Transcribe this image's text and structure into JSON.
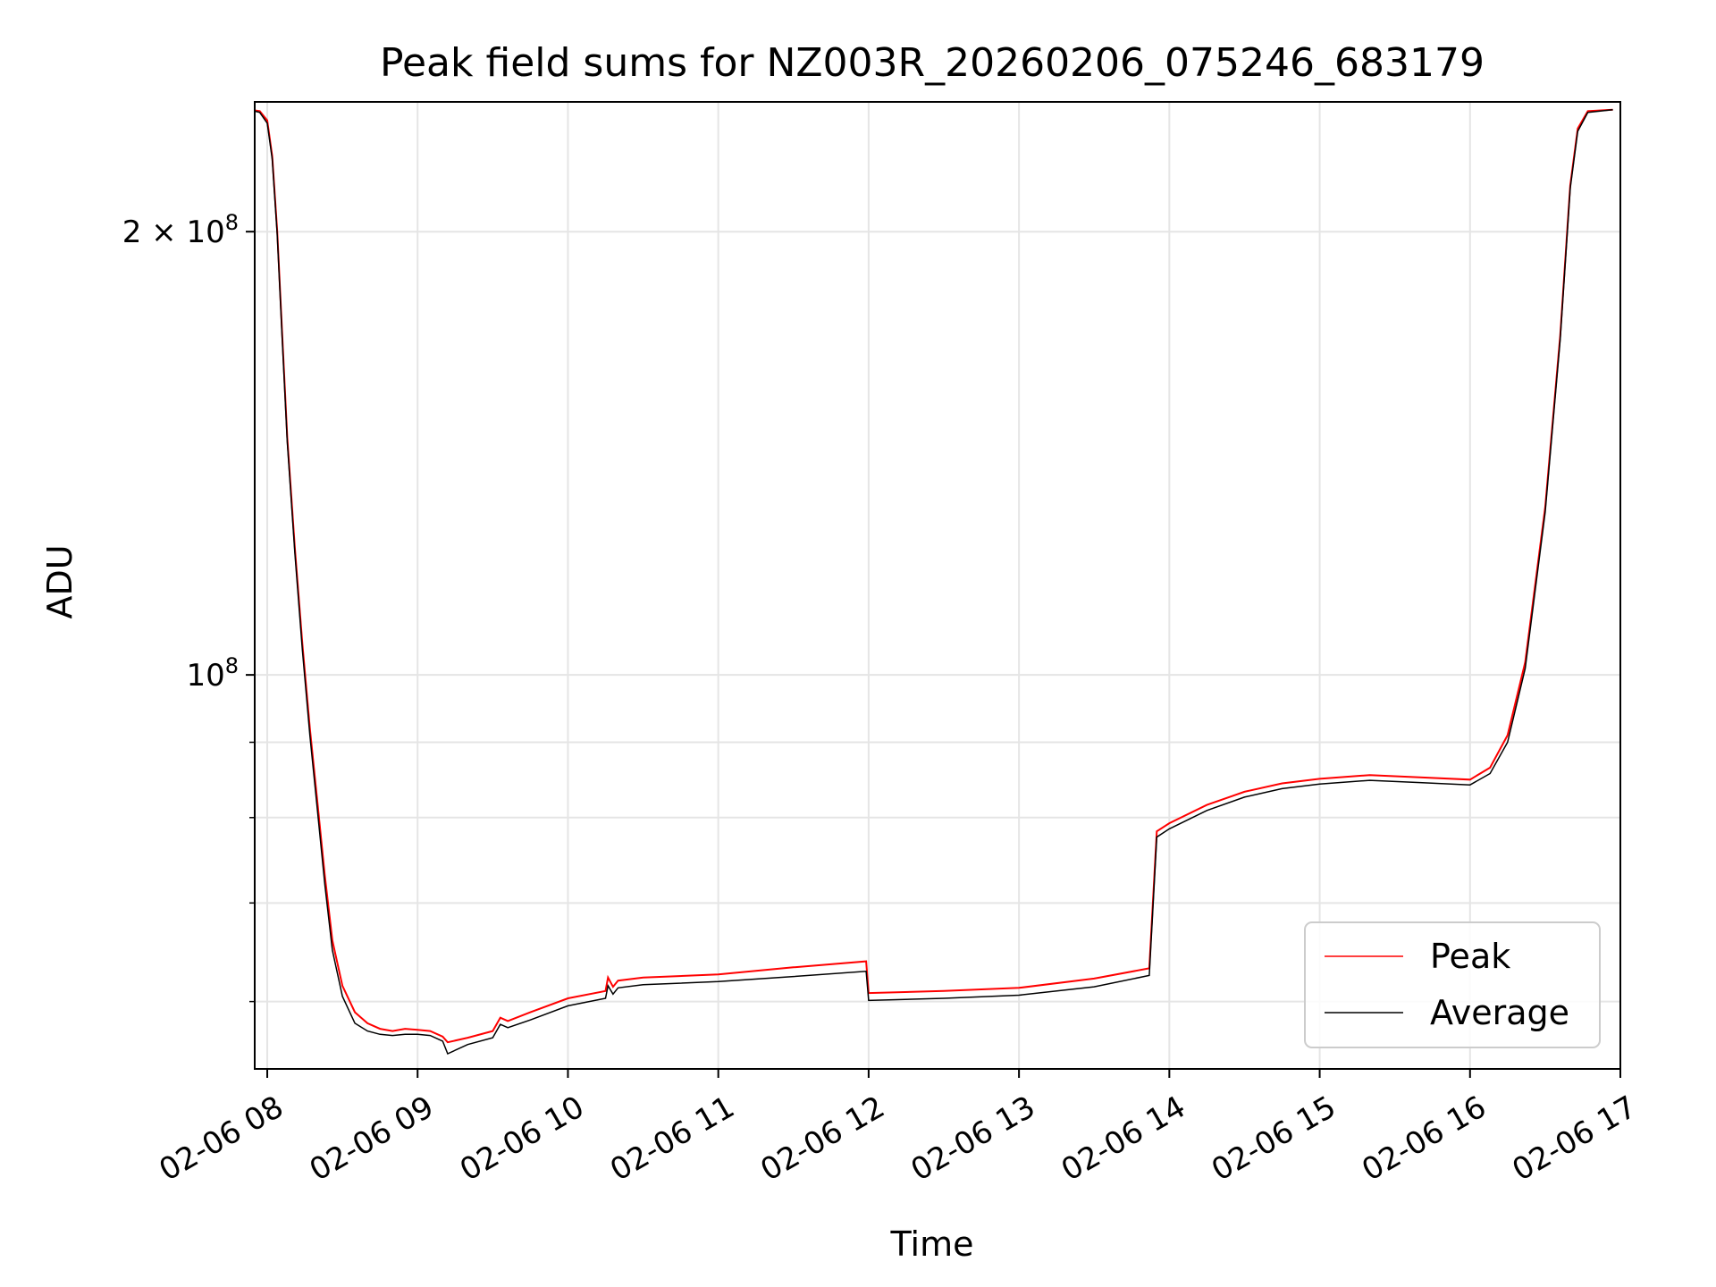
{
  "chart_data": {
    "type": "line",
    "title": "Peak field sums for NZ003R_20260206_075246_683179",
    "xlabel": "Time",
    "ylabel": "ADU",
    "yscale": "log",
    "ylim": [
      54000000,
      245000000
    ],
    "xlim": [
      "2026-02-06 07:55",
      "2026-02-06 17:00"
    ],
    "grid": true,
    "legend_position": "lower right",
    "x_ticks": [
      {
        "time": "2026-02-06 08:00",
        "label": "02-06 08"
      },
      {
        "time": "2026-02-06 09:00",
        "label": "02-06 09"
      },
      {
        "time": "2026-02-06 10:00",
        "label": "02-06 10"
      },
      {
        "time": "2026-02-06 11:00",
        "label": "02-06 11"
      },
      {
        "time": "2026-02-06 12:00",
        "label": "02-06 12"
      },
      {
        "time": "2026-02-06 13:00",
        "label": "02-06 13"
      },
      {
        "time": "2026-02-06 14:00",
        "label": "02-06 14"
      },
      {
        "time": "2026-02-06 15:00",
        "label": "02-06 15"
      },
      {
        "time": "2026-02-06 16:00",
        "label": "02-06 16"
      },
      {
        "time": "2026-02-06 17:00",
        "label": "02-06 17"
      }
    ],
    "y_major_ticks": [
      {
        "value": 100000000,
        "base": "10",
        "exp": "8",
        "mult": ""
      },
      {
        "value": 200000000,
        "base": "10",
        "exp": "8",
        "mult": "2 × "
      }
    ],
    "y_minor_ticks": [
      60000000,
      70000000,
      80000000,
      90000000
    ],
    "series": [
      {
        "name": "Peak",
        "color": "#ff0000",
        "points": [
          [
            "2026-02-06 07:53",
            242000000
          ],
          [
            "2026-02-06 07:57",
            241500000
          ],
          [
            "2026-02-06 08:00",
            238000000
          ],
          [
            "2026-02-06 08:02",
            225000000
          ],
          [
            "2026-02-06 08:04",
            200000000
          ],
          [
            "2026-02-06 08:06",
            170000000
          ],
          [
            "2026-02-06 08:08",
            145000000
          ],
          [
            "2026-02-06 08:11",
            122000000
          ],
          [
            "2026-02-06 08:14",
            105000000
          ],
          [
            "2026-02-06 08:17",
            92000000
          ],
          [
            "2026-02-06 08:20",
            82000000
          ],
          [
            "2026-02-06 08:23",
            73000000
          ],
          [
            "2026-02-06 08:26",
            66000000
          ],
          [
            "2026-02-06 08:30",
            61500000
          ],
          [
            "2026-02-06 08:35",
            59000000
          ],
          [
            "2026-02-06 08:40",
            58000000
          ],
          [
            "2026-02-06 08:45",
            57500000
          ],
          [
            "2026-02-06 08:50",
            57300000
          ],
          [
            "2026-02-06 08:55",
            57500000
          ],
          [
            "2026-02-06 09:00",
            57400000
          ],
          [
            "2026-02-06 09:05",
            57300000
          ],
          [
            "2026-02-06 09:10",
            56800000
          ],
          [
            "2026-02-06 09:12",
            56300000
          ],
          [
            "2026-02-06 09:20",
            56700000
          ],
          [
            "2026-02-06 09:30",
            57300000
          ],
          [
            "2026-02-06 09:33",
            58500000
          ],
          [
            "2026-02-06 09:36",
            58200000
          ],
          [
            "2026-02-06 09:45",
            59000000
          ],
          [
            "2026-02-06 10:00",
            60300000
          ],
          [
            "2026-02-06 10:15",
            61000000
          ],
          [
            "2026-02-06 10:16",
            62300000
          ],
          [
            "2026-02-06 10:18",
            61400000
          ],
          [
            "2026-02-06 10:20",
            62000000
          ],
          [
            "2026-02-06 10:30",
            62300000
          ],
          [
            "2026-02-06 11:00",
            62600000
          ],
          [
            "2026-02-06 11:30",
            63300000
          ],
          [
            "2026-02-06 11:59",
            63900000
          ],
          [
            "2026-02-06 12:00",
            60800000
          ],
          [
            "2026-02-06 12:30",
            61000000
          ],
          [
            "2026-02-06 13:00",
            61300000
          ],
          [
            "2026-02-06 13:30",
            62200000
          ],
          [
            "2026-02-06 13:52",
            63200000
          ],
          [
            "2026-02-06 13:55",
            78300000
          ],
          [
            "2026-02-06 14:00",
            79300000
          ],
          [
            "2026-02-06 14:15",
            81600000
          ],
          [
            "2026-02-06 14:30",
            83300000
          ],
          [
            "2026-02-06 14:45",
            84400000
          ],
          [
            "2026-02-06 15:00",
            85000000
          ],
          [
            "2026-02-06 15:20",
            85500000
          ],
          [
            "2026-02-06 15:40",
            85200000
          ],
          [
            "2026-02-06 16:00",
            84900000
          ],
          [
            "2026-02-06 16:08",
            86500000
          ],
          [
            "2026-02-06 16:15",
            91000000
          ],
          [
            "2026-02-06 16:22",
            102000000
          ],
          [
            "2026-02-06 16:30",
            130000000
          ],
          [
            "2026-02-06 16:36",
            170000000
          ],
          [
            "2026-02-06 16:40",
            215000000
          ],
          [
            "2026-02-06 16:43",
            235000000
          ],
          [
            "2026-02-06 16:47",
            241500000
          ],
          [
            "2026-02-06 16:57",
            242000000
          ]
        ]
      },
      {
        "name": "Average",
        "color": "#000000",
        "points": [
          [
            "2026-02-06 07:53",
            242000000
          ],
          [
            "2026-02-06 07:57",
            241000000
          ],
          [
            "2026-02-06 08:00",
            237000000
          ],
          [
            "2026-02-06 08:02",
            224000000
          ],
          [
            "2026-02-06 08:04",
            199000000
          ],
          [
            "2026-02-06 08:06",
            169000000
          ],
          [
            "2026-02-06 08:08",
            144000000
          ],
          [
            "2026-02-06 08:11",
            121000000
          ],
          [
            "2026-02-06 08:14",
            104000000
          ],
          [
            "2026-02-06 08:17",
            91000000
          ],
          [
            "2026-02-06 08:20",
            81000000
          ],
          [
            "2026-02-06 08:23",
            72000000
          ],
          [
            "2026-02-06 08:26",
            65000000
          ],
          [
            "2026-02-06 08:30",
            60500000
          ],
          [
            "2026-02-06 08:35",
            58000000
          ],
          [
            "2026-02-06 08:40",
            57300000
          ],
          [
            "2026-02-06 08:45",
            57000000
          ],
          [
            "2026-02-06 08:50",
            56900000
          ],
          [
            "2026-02-06 08:55",
            57000000
          ],
          [
            "2026-02-06 09:00",
            57000000
          ],
          [
            "2026-02-06 09:05",
            56900000
          ],
          [
            "2026-02-06 09:10",
            56400000
          ],
          [
            "2026-02-06 09:12",
            55300000
          ],
          [
            "2026-02-06 09:20",
            56100000
          ],
          [
            "2026-02-06 09:30",
            56700000
          ],
          [
            "2026-02-06 09:33",
            57900000
          ],
          [
            "2026-02-06 09:36",
            57600000
          ],
          [
            "2026-02-06 09:45",
            58300000
          ],
          [
            "2026-02-06 10:00",
            59600000
          ],
          [
            "2026-02-06 10:15",
            60300000
          ],
          [
            "2026-02-06 10:16",
            61500000
          ],
          [
            "2026-02-06 10:18",
            60700000
          ],
          [
            "2026-02-06 10:20",
            61300000
          ],
          [
            "2026-02-06 10:30",
            61600000
          ],
          [
            "2026-02-06 11:00",
            61900000
          ],
          [
            "2026-02-06 11:30",
            62400000
          ],
          [
            "2026-02-06 11:59",
            62900000
          ],
          [
            "2026-02-06 12:00",
            60100000
          ],
          [
            "2026-02-06 12:30",
            60300000
          ],
          [
            "2026-02-06 13:00",
            60600000
          ],
          [
            "2026-02-06 13:30",
            61400000
          ],
          [
            "2026-02-06 13:52",
            62500000
          ],
          [
            "2026-02-06 13:55",
            77600000
          ],
          [
            "2026-02-06 14:00",
            78600000
          ],
          [
            "2026-02-06 14:15",
            80900000
          ],
          [
            "2026-02-06 14:30",
            82600000
          ],
          [
            "2026-02-06 14:45",
            83700000
          ],
          [
            "2026-02-06 15:00",
            84300000
          ],
          [
            "2026-02-06 15:20",
            84800000
          ],
          [
            "2026-02-06 15:40",
            84500000
          ],
          [
            "2026-02-06 16:00",
            84200000
          ],
          [
            "2026-02-06 16:08",
            85700000
          ],
          [
            "2026-02-06 16:15",
            90000000
          ],
          [
            "2026-02-06 16:22",
            101000000
          ],
          [
            "2026-02-06 16:30",
            129000000
          ],
          [
            "2026-02-06 16:36",
            169000000
          ],
          [
            "2026-02-06 16:40",
            214000000
          ],
          [
            "2026-02-06 16:43",
            234000000
          ],
          [
            "2026-02-06 16:47",
            241000000
          ],
          [
            "2026-02-06 16:57",
            242000000
          ]
        ]
      }
    ]
  }
}
